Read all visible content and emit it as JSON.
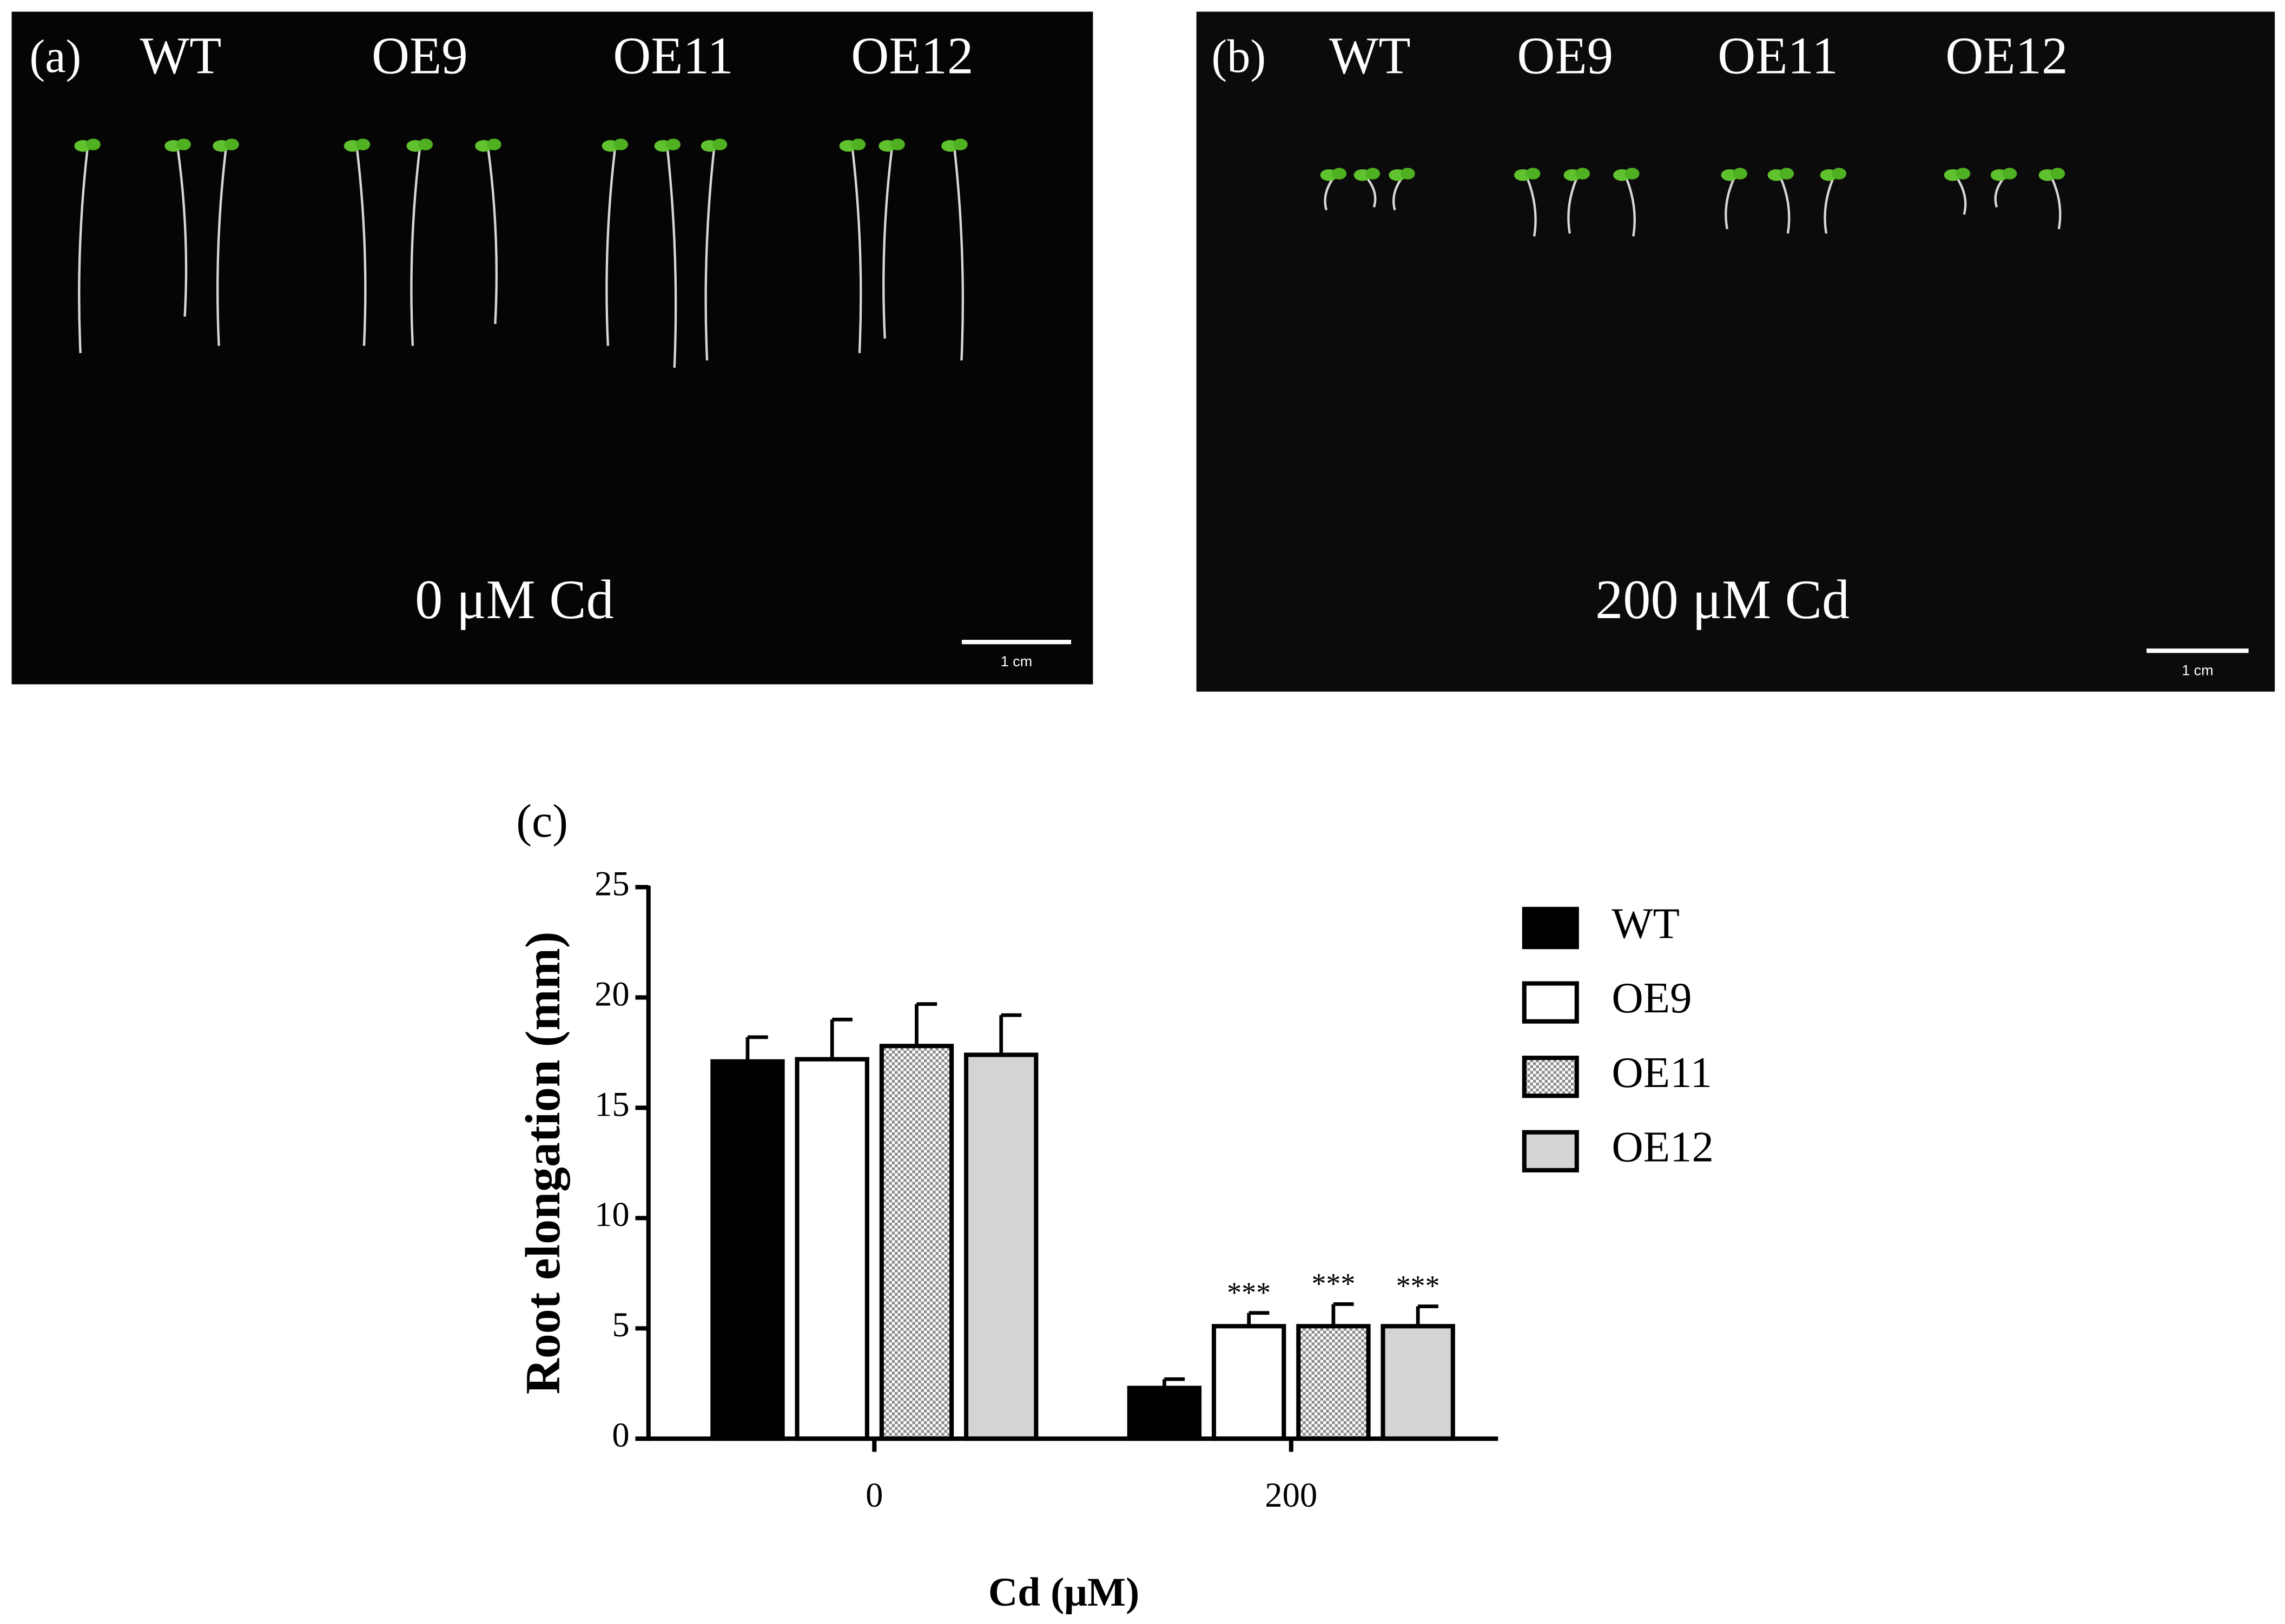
{
  "photo_panels": [
    {
      "label": "(a)",
      "genotypes": [
        "WT",
        "OE9",
        "OE11",
        "OE12"
      ],
      "condition": "0 μM Cd",
      "scale_bar": "1 cm"
    },
    {
      "label": "(b)",
      "genotypes": [
        "WT",
        "OE9",
        "OE11",
        "OE12"
      ],
      "condition": "200 μM Cd",
      "scale_bar": "1 cm"
    }
  ],
  "chart_data": {
    "type": "bar",
    "panel_label": "(c)",
    "xlabel": "Cd (μM)",
    "ylabel": "Root elongation (mm)",
    "categories": [
      "0",
      "200"
    ],
    "series": [
      {
        "name": "WT",
        "color": "#000000",
        "values": [
          17.1,
          2.3
        ],
        "errors": [
          1.1,
          0.4
        ]
      },
      {
        "name": "OE9",
        "color": "#ffffff",
        "values": [
          17.2,
          5.1
        ],
        "errors": [
          1.8,
          0.6
        ],
        "annotations": [
          null,
          "***"
        ]
      },
      {
        "name": "OE11",
        "color": "#8c8c8c",
        "pattern": "checker",
        "values": [
          17.8,
          5.1
        ],
        "errors": [
          1.9,
          1.0
        ],
        "annotations": [
          null,
          "***"
        ]
      },
      {
        "name": "OE12",
        "color": "#d4d4d4",
        "values": [
          17.4,
          5.1
        ],
        "errors": [
          1.8,
          0.9
        ],
        "annotations": [
          null,
          "***"
        ]
      }
    ],
    "ylim": [
      0,
      25
    ],
    "yticks": [
      0,
      5,
      10,
      15,
      20,
      25
    ],
    "legend": "right"
  }
}
